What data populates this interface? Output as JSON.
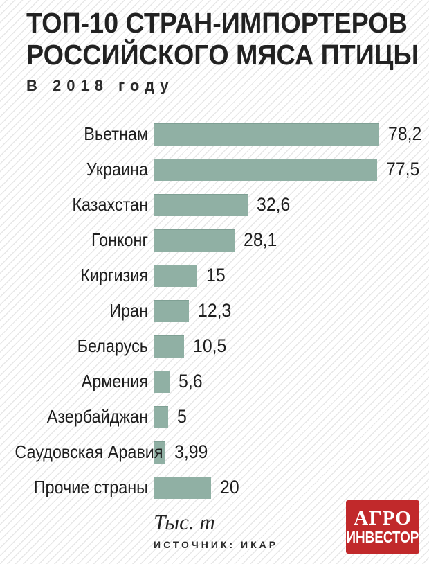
{
  "title": {
    "line1": "ТОП-10 СТРАН-ИМПОРТЕРОВ",
    "line2": "РОССИЙСКОГО МЯСА ПТИЦЫ",
    "subtitle": "В 2018 году"
  },
  "chart_data": {
    "type": "bar",
    "orientation": "horizontal",
    "title": "ТОП-10 стран-импортеров российского мяса птицы в 2018 году",
    "categories": [
      "Вьетнам",
      "Украина",
      "Казахстан",
      "Гонконг",
      "Киргизия",
      "Иран",
      "Беларусь",
      "Армения",
      "Азербайджан",
      "Саудовская Аравия",
      "Прочие страны"
    ],
    "values": [
      78.2,
      77.5,
      32.6,
      28.1,
      15,
      12.3,
      10.5,
      5.6,
      5,
      3.99,
      20
    ],
    "value_labels": [
      "78,2",
      "77,5",
      "32,6",
      "28,1",
      "15",
      "12,3",
      "10,5",
      "5,6",
      "5",
      "3,99",
      "20"
    ],
    "xlabel": "Тыс. т",
    "xlim": [
      0,
      80
    ],
    "grid": false,
    "legend": false,
    "bar_color": "#90b0a4"
  },
  "footer": {
    "unit": "Тыс. т",
    "source": "ИСТОЧНИК: ИКАР"
  },
  "logo": {
    "line1": "АГРО",
    "line2": "ИНВЕСТОР",
    "bg_color": "#c1292b"
  }
}
